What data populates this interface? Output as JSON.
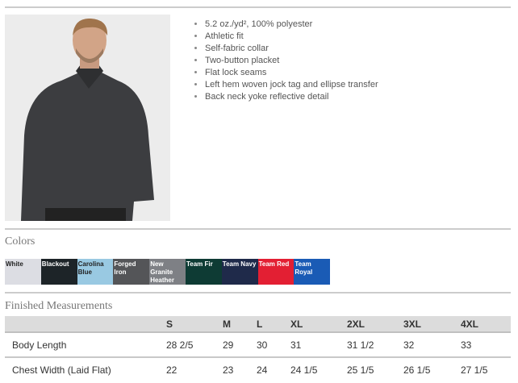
{
  "features": [
    "5.2 oz./yd², 100% polyester",
    "Athletic fit",
    "Self-fabric collar",
    "Two-button placket",
    "Flat lock seams",
    "Left hem woven jock tag and ellipse transfer",
    "Back neck yoke reflective detail"
  ],
  "colors_heading": "Colors",
  "colors": [
    {
      "name": "White",
      "hex": "#dcdde3",
      "text": "#222"
    },
    {
      "name": "Blackout",
      "hex": "#1d2428",
      "text": "#fff"
    },
    {
      "name": "Carolina Blue",
      "hex": "#99c9e2",
      "text": "#222"
    },
    {
      "name": "Forged Iron",
      "hex": "#545558",
      "text": "#fff"
    },
    {
      "name": "New Granite Heather",
      "hex": "#7e8085",
      "text": "#fff"
    },
    {
      "name": "Team Fir",
      "hex": "#0e3b34",
      "text": "#fff"
    },
    {
      "name": "Team Navy",
      "hex": "#1f2a4a",
      "text": "#fff"
    },
    {
      "name": "Team Red",
      "hex": "#e31f33",
      "text": "#fff"
    },
    {
      "name": "Team Royal",
      "hex": "#1a5bb5",
      "text": "#fff"
    }
  ],
  "measurements_heading": "Finished Measurements",
  "sizes": [
    "S",
    "M",
    "L",
    "XL",
    "2XL",
    "3XL",
    "4XL"
  ],
  "rows": [
    {
      "label": "Body Length",
      "values": [
        "28 2/5",
        "29",
        "30",
        "31",
        "31 1/2",
        "32",
        "33"
      ]
    },
    {
      "label": "Chest Width (Laid Flat)",
      "values": [
        "22",
        "23",
        "24",
        "24 1/5",
        "25 1/5",
        "26 1/5",
        "27 1/5"
      ]
    }
  ]
}
